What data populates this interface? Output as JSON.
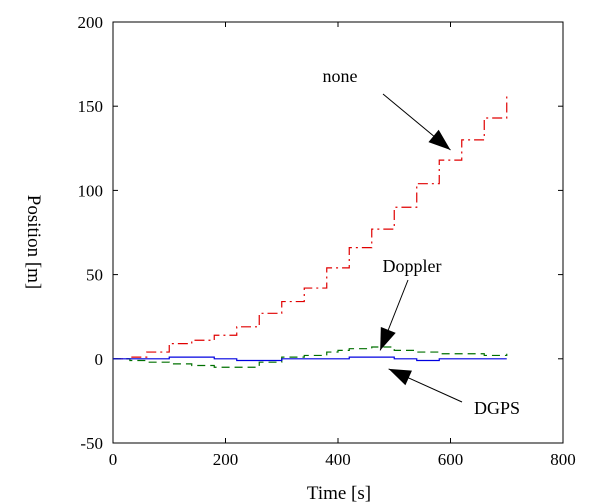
{
  "chart_data": {
    "type": "line",
    "title": "",
    "xlabel": "Time [s]",
    "ylabel": "Position [m]",
    "xlim": [
      0,
      800
    ],
    "ylim": [
      -50,
      200
    ],
    "xticks": [
      0,
      200,
      400,
      600,
      800
    ],
    "yticks": [
      -50,
      0,
      50,
      100,
      150,
      200
    ],
    "grid": false,
    "series": [
      {
        "name": "none",
        "color": "#e00000",
        "style": "dashdot",
        "x": [
          0,
          30,
          60,
          100,
          140,
          180,
          220,
          260,
          300,
          340,
          380,
          420,
          460,
          500,
          540,
          580,
          620,
          660,
          700
        ],
        "y": [
          0,
          1,
          4,
          9,
          11,
          14,
          19,
          27,
          34,
          42,
          54,
          66,
          77,
          90,
          104,
          118,
          130,
          143,
          157
        ]
      },
      {
        "name": "Doppler",
        "color": "#007000",
        "style": "dashed",
        "x": [
          0,
          30,
          60,
          100,
          140,
          180,
          220,
          260,
          300,
          340,
          380,
          400,
          420,
          460,
          500,
          540,
          580,
          620,
          660,
          700
        ],
        "y": [
          0,
          -1,
          -2,
          -3,
          -4,
          -5,
          -5,
          -2,
          1,
          2,
          4,
          5,
          6,
          7,
          5,
          4,
          3,
          3,
          2,
          3
        ]
      },
      {
        "name": "DGPS",
        "color": "#0000e0",
        "style": "solid",
        "x": [
          0,
          30,
          60,
          100,
          140,
          180,
          220,
          260,
          300,
          340,
          380,
          420,
          460,
          500,
          540,
          580,
          620,
          660,
          700
        ],
        "y": [
          0,
          0,
          0,
          1,
          1,
          0,
          -1,
          -1,
          0,
          0,
          0,
          1,
          1,
          0,
          -1,
          0,
          0,
          0,
          0
        ]
      }
    ],
    "annotations": [
      {
        "text": "none",
        "target": [
          600,
          124
        ]
      },
      {
        "text": "Doppler",
        "target": [
          475,
          5
        ]
      },
      {
        "text": "DGPS",
        "target": [
          490,
          -6
        ]
      }
    ]
  }
}
